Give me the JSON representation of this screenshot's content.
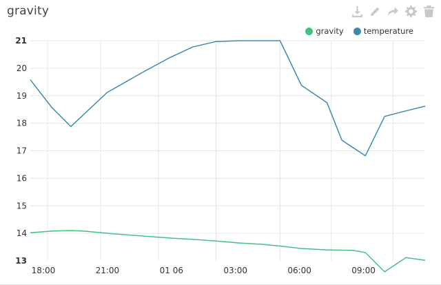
{
  "panel": {
    "title": "gravity"
  },
  "toolbar": [
    {
      "name": "download-icon",
      "icon": "download"
    },
    {
      "name": "edit-icon",
      "icon": "pencil"
    },
    {
      "name": "share-icon",
      "icon": "share"
    },
    {
      "name": "settings-icon",
      "icon": "gear"
    },
    {
      "name": "delete-icon",
      "icon": "trash"
    }
  ],
  "chart_data": {
    "type": "line",
    "title": "gravity",
    "xlabel": "",
    "ylabel": "",
    "ylim": [
      13,
      21
    ],
    "y_ticks": [
      "13",
      "14",
      "15",
      "16",
      "17",
      "18",
      "19",
      "20",
      "21"
    ],
    "y_bold_ticks": [
      "21",
      "13"
    ],
    "xlim": [
      17.0,
      35.5
    ],
    "x_ticks": [
      {
        "x": 18,
        "label": "18:00"
      },
      {
        "x": 21,
        "label": "21:00"
      },
      {
        "x": 24,
        "label": "01 06"
      },
      {
        "x": 27,
        "label": "03:00"
      },
      {
        "x": 30,
        "label": "06:00"
      },
      {
        "x": 33,
        "label": "09:00"
      }
    ],
    "x_grid": [
      17.8,
      20.3,
      23.0,
      25.7,
      28.7,
      31.1,
      34.0
    ],
    "grid": true,
    "legend_position": "top-right",
    "series": [
      {
        "name": "gravity",
        "color": "#3fc380",
        "x": [
          17.0,
          18.0,
          18.9,
          19.5,
          20.9,
          22.3,
          23.5,
          24.6,
          25.7,
          26.8,
          27.9,
          28.8,
          29.7,
          30.9,
          32.1,
          32.7,
          33.6,
          34.6,
          35.5
        ],
        "y": [
          14.02,
          14.08,
          14.1,
          14.08,
          13.98,
          13.9,
          13.83,
          13.78,
          13.72,
          13.65,
          13.6,
          13.53,
          13.45,
          13.4,
          13.38,
          13.3,
          12.6,
          13.12,
          13.02
        ]
      },
      {
        "name": "temperature",
        "color": "#3d8aad",
        "x": [
          17.0,
          18.0,
          18.9,
          20.6,
          22.3,
          23.5,
          24.6,
          25.7,
          26.8,
          28.7,
          29.7,
          30.9,
          31.6,
          32.7,
          33.6,
          34.6,
          35.5
        ],
        "y": [
          19.58,
          18.58,
          17.88,
          19.12,
          19.87,
          20.37,
          20.77,
          20.97,
          21.0,
          21.0,
          19.38,
          18.75,
          17.38,
          16.82,
          18.25,
          18.45,
          18.62
        ]
      }
    ]
  }
}
